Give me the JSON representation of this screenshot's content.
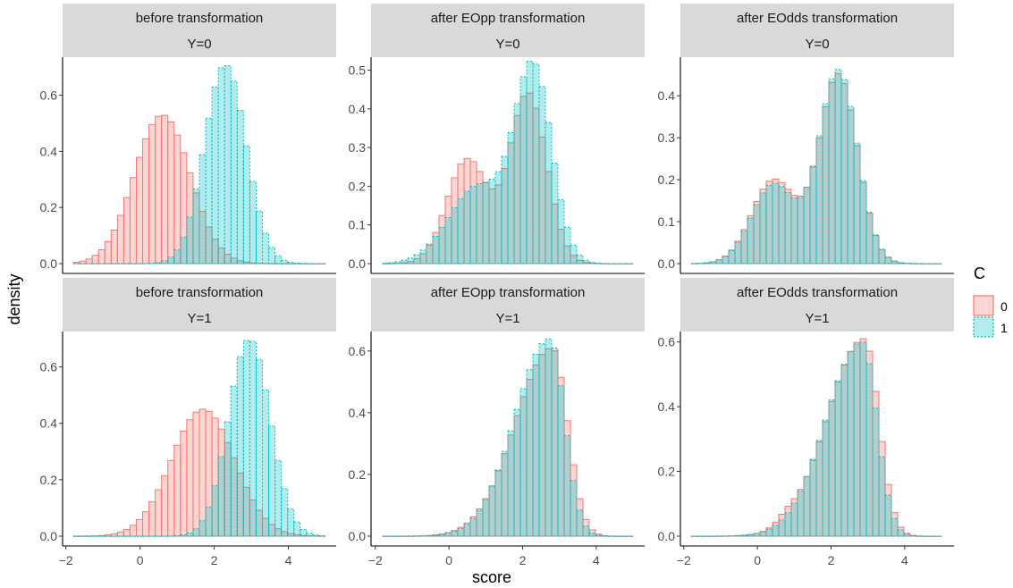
{
  "chart_data": {
    "type": "histogram-facet",
    "xlabel": "score",
    "ylabel": "density",
    "x_ticks": [
      -2,
      0,
      2,
      4
    ],
    "legend": {
      "title": "C",
      "entries": [
        {
          "label": "0",
          "fill": "#F8766D",
          "fill_alpha": 0.3,
          "stroke": "#F8766D",
          "dash": "solid"
        },
        {
          "label": "1",
          "fill": "#00BFC4",
          "fill_alpha": 0.3,
          "stroke": "#00BFC4",
          "dash": "dotted"
        }
      ],
      "position": "right"
    },
    "panels": [
      {
        "strip": [
          "before transformation",
          "Y=0"
        ],
        "y_ticks": [
          0.0,
          0.2,
          0.4,
          0.6
        ],
        "y_tick_labels": [
          "0.0",
          "0.2",
          "0.4",
          "0.6"
        ],
        "ylim": [
          0,
          0.71
        ],
        "series": [
          {
            "name": "0",
            "shape": {
              "type": "normal",
              "mean": 0.6,
              "sd": 0.75,
              "peak": 0.53
            }
          },
          {
            "name": "1",
            "shape": {
              "type": "normal",
              "mean": 2.3,
              "sd": 0.56,
              "peak": 0.71
            }
          }
        ]
      },
      {
        "strip": [
          "after EOpp transformation",
          "Y=0"
        ],
        "y_ticks": [
          0.0,
          0.1,
          0.2,
          0.3,
          0.4,
          0.5
        ],
        "y_tick_labels": [
          "0.0",
          "0.1",
          "0.2",
          "0.3",
          "0.4",
          "0.5"
        ],
        "ylim": [
          0,
          0.515
        ],
        "series": [
          {
            "name": "0",
            "shape": {
              "type": "mix",
              "components": [
                {
                  "mean": 0.5,
                  "sd": 0.55,
                  "peak": 0.27
                },
                {
                  "mean": 2.15,
                  "sd": 0.5,
                  "peak": 0.44
                }
              ]
            }
          },
          {
            "name": "1",
            "shape": {
              "type": "mix",
              "components": [
                {
                  "mean": 0.8,
                  "sd": 0.8,
                  "peak": 0.2
                },
                {
                  "mean": 2.3,
                  "sd": 0.5,
                  "peak": 0.49
                }
              ]
            }
          }
        ]
      },
      {
        "strip": [
          "after EOdds transformation",
          "Y=0"
        ],
        "y_ticks": [
          0.0,
          0.1,
          0.2,
          0.3,
          0.4
        ],
        "y_tick_labels": [
          "0.0",
          "0.1",
          "0.2",
          "0.3",
          "0.4"
        ],
        "ylim": [
          0,
          0.475
        ],
        "series": [
          {
            "name": "0",
            "shape": {
              "type": "mix",
              "components": [
                {
                  "mean": 0.45,
                  "sd": 0.6,
                  "peak": 0.2
                },
                {
                  "mean": 2.2,
                  "sd": 0.52,
                  "peak": 0.45
                }
              ]
            }
          },
          {
            "name": "1",
            "shape": {
              "type": "mix",
              "components": [
                {
                  "mean": 0.45,
                  "sd": 0.6,
                  "peak": 0.19
                },
                {
                  "mean": 2.2,
                  "sd": 0.52,
                  "peak": 0.46
                }
              ]
            }
          }
        ]
      },
      {
        "strip": [
          "before transformation",
          "Y=1"
        ],
        "y_ticks": [
          0.0,
          0.2,
          0.4,
          0.6
        ],
        "y_tick_labels": [
          "0.0",
          "0.2",
          "0.4",
          "0.6"
        ],
        "ylim": [
          0,
          0.7
        ],
        "series": [
          {
            "name": "0",
            "shape": {
              "type": "normal",
              "mean": 1.7,
              "sd": 0.85,
              "peak": 0.45
            }
          },
          {
            "name": "1",
            "shape": {
              "type": "normal",
              "mean": 2.95,
              "sd": 0.56,
              "peak": 0.7
            }
          }
        ]
      },
      {
        "strip": [
          "after EOpp transformation",
          "Y=1"
        ],
        "y_ticks": [
          0.0,
          0.2,
          0.4,
          0.6
        ],
        "y_tick_labels": [
          "0.0",
          "0.2",
          "0.4",
          "0.6"
        ],
        "ylim": [
          0,
          0.64
        ],
        "series": [
          {
            "name": "0",
            "shape": {
              "type": "skew",
              "mode": 2.8,
              "left_sd": 1.0,
              "right_sd": 0.42,
              "peak": 0.61
            }
          },
          {
            "name": "1",
            "shape": {
              "type": "skew",
              "mode": 2.75,
              "left_sd": 0.95,
              "right_sd": 0.4,
              "peak": 0.64
            }
          }
        ]
      },
      {
        "strip": [
          "after EOdds transformation",
          "Y=1"
        ],
        "y_ticks": [
          0.0,
          0.2,
          0.4,
          0.6
        ],
        "y_tick_labels": [
          "0.0",
          "0.2",
          "0.4",
          "0.6"
        ],
        "ylim": [
          0,
          0.61
        ],
        "series": [
          {
            "name": "0",
            "shape": {
              "type": "skew",
              "mode": 2.9,
              "left_sd": 1.0,
              "right_sd": 0.4,
              "peak": 0.61,
              "bump": {
                "mean": 0.8,
                "sd": 0.25,
                "peak": 0.02
              }
            }
          },
          {
            "name": "1",
            "shape": {
              "type": "skew",
              "mode": 2.85,
              "left_sd": 0.98,
              "right_sd": 0.4,
              "peak": 0.6
            }
          }
        ]
      }
    ],
    "bins": {
      "start": -1.8,
      "end": 5.0,
      "width": 0.17
    }
  }
}
